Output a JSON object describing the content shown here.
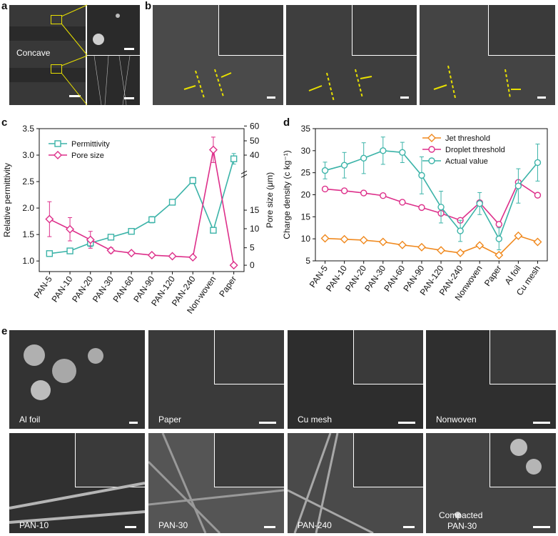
{
  "panels": {
    "a": {
      "letter": "a",
      "label": "Concave"
    },
    "b": {
      "letter": "b"
    },
    "c": {
      "letter": "c"
    },
    "d": {
      "letter": "d"
    },
    "e": {
      "letter": "e",
      "labels": [
        "Al foil",
        "Paper",
        "Cu mesh",
        "Nonwoven",
        "PAN-10",
        "PAN-30",
        "PAN-240",
        "Compacted",
        "PAN-30"
      ]
    }
  },
  "chart_data": [
    {
      "type": "line",
      "categories": [
        "PAN-5",
        "PAN-10",
        "PAN-20",
        "PAN-30",
        "PAN-60",
        "PAN-90",
        "PAN-120",
        "PAN-240",
        "Non-woven",
        "Paper"
      ],
      "ylabel": "Relative permittivity",
      "ylim": [
        0.8,
        3.5
      ],
      "yticks": [
        "1.0",
        "1.5",
        "2.0",
        "2.5",
        "3.0",
        "3.5"
      ],
      "y2label": "Pore size (μm)",
      "y2ticks": [
        "0",
        "5",
        "10",
        "15",
        "40",
        "50",
        "60"
      ],
      "legend_position": "top-left",
      "series": [
        {
          "name": "Permittivity",
          "color": "#3bb3a8",
          "marker": "square",
          "values": [
            1.14,
            1.19,
            1.34,
            1.45,
            1.56,
            1.78,
            2.11,
            2.52,
            1.58,
            2.93
          ],
          "errors": [
            0.03,
            0.03,
            0.07,
            0.04,
            0.03,
            0.06,
            0.03,
            0.06,
            0.03,
            0.1
          ]
        },
        {
          "name": "Pore size",
          "color": "#dd2f8a",
          "marker": "diamond",
          "values": [
            1.79,
            1.6,
            1.4,
            1.2,
            1.15,
            1.11,
            1.09,
            1.07,
            3.1,
            0.92
          ],
          "errors": [
            0.33,
            0.22,
            0.16,
            0.05,
            0.03,
            0.03,
            0.02,
            0.02,
            0.24,
            0.0
          ]
        }
      ]
    },
    {
      "type": "line",
      "categories": [
        "PAN-5",
        "PAN-10",
        "PAN-20",
        "PAN-30",
        "PAN-60",
        "PAN-90",
        "PAN-120",
        "PAN-240",
        "Nonwoven",
        "Paper",
        "Al foil",
        "Cu mesh"
      ],
      "ylabel": "Charge density (c kg⁻¹)",
      "ylim": [
        5,
        35
      ],
      "yticks": [
        "5",
        "10",
        "15",
        "20",
        "25",
        "30",
        "35"
      ],
      "legend_position": "top-right",
      "series": [
        {
          "name": "Jet threshold",
          "color": "#f0891e",
          "marker": "diamond",
          "values": [
            10.1,
            9.9,
            9.7,
            9.3,
            8.6,
            8.1,
            7.4,
            6.8,
            8.5,
            6.3,
            10.7,
            9.3
          ]
        },
        {
          "name": "Droplet threshold",
          "color": "#dd2f8a",
          "marker": "circle",
          "values": [
            21.3,
            20.9,
            20.4,
            19.8,
            18.3,
            17.1,
            15.8,
            14.2,
            18.2,
            13.3,
            22.8,
            19.9
          ]
        },
        {
          "name": "Actual value",
          "color": "#3bb3a8",
          "marker": "circle",
          "values": [
            25.5,
            26.7,
            28.3,
            30.0,
            29.6,
            24.4,
            17.2,
            11.8,
            18.0,
            10.0,
            22.0,
            27.3
          ],
          "errors": [
            1.9,
            2.9,
            3.5,
            3.1,
            2.3,
            4.2,
            3.6,
            2.4,
            2.5,
            2.5,
            3.9,
            4.2
          ]
        }
      ]
    }
  ]
}
